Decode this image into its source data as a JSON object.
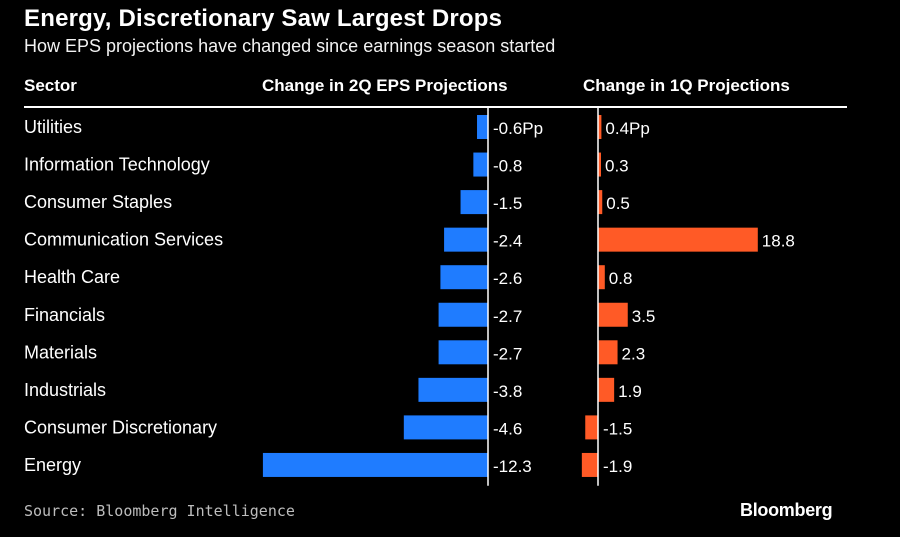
{
  "title": "Energy, Discretionary Saw Largest Drops",
  "subtitle": "How EPS projections have changed since earnings season started",
  "headers": {
    "sector": "Sector",
    "col2q": "Change in 2Q EPS Projections",
    "col1q": "Change in 1Q Projections"
  },
  "source": "Source: Bloomberg Intelligence",
  "brand": "Bloomberg",
  "colors": {
    "background": "#000000",
    "series_2q": "#1f7cff",
    "series_1q": "#ff5a26",
    "text": "#ffffff"
  },
  "chart_data": {
    "type": "bar",
    "orientation": "horizontal",
    "title": "Energy, Discretionary Saw Largest Drops",
    "categories": [
      "Utilities",
      "Information Technology",
      "Consumer Staples",
      "Communication Services",
      "Health Care",
      "Financials",
      "Materials",
      "Industrials",
      "Consumer Discretionary",
      "Energy"
    ],
    "series": [
      {
        "name": "Change in 2Q EPS Projections",
        "values": [
          -0.6,
          -0.8,
          -1.5,
          -2.4,
          -2.6,
          -2.7,
          -2.7,
          -3.8,
          -4.6,
          -12.3
        ],
        "labels": [
          "-0.6Pp",
          "-0.8",
          "-1.5",
          "-2.4",
          "-2.6",
          "-2.7",
          "-2.7",
          "-3.8",
          "-4.6",
          "-12.3"
        ]
      },
      {
        "name": "Change in 1Q Projections",
        "values": [
          0.4,
          0.3,
          0.5,
          18.8,
          0.8,
          3.5,
          2.3,
          1.9,
          -1.5,
          -1.9
        ],
        "labels": [
          "0.4Pp",
          "0.3",
          "0.5",
          "18.8",
          "0.8",
          "3.5",
          "2.3",
          "1.9",
          "-1.5",
          "-1.9"
        ]
      }
    ],
    "unit": "Pp"
  }
}
